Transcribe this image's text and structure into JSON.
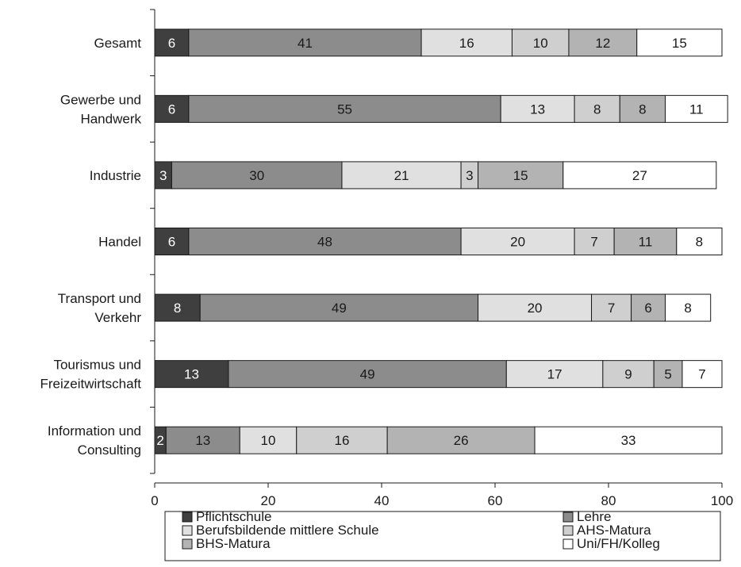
{
  "chart_data": {
    "type": "bar",
    "orientation": "horizontal",
    "stacked": true,
    "categories": [
      [
        "Gesamt"
      ],
      [
        "Gewerbe und",
        "Handwerk"
      ],
      [
        "Industrie"
      ],
      [
        "Handel"
      ],
      [
        "Transport und",
        "Verkehr"
      ],
      [
        "Tourismus und",
        "Freizeitwirtschaft"
      ],
      [
        "Information und",
        "Consulting"
      ]
    ],
    "series": [
      {
        "name": "Pflichtschule",
        "color": "#3f3f3f",
        "label_color": "#ffffff",
        "values": [
          6,
          6,
          3,
          6,
          8,
          13,
          2
        ]
      },
      {
        "name": "Lehre",
        "color": "#8c8c8c",
        "label_color": "#1a1a1a",
        "values": [
          41,
          55,
          30,
          48,
          49,
          49,
          13
        ]
      },
      {
        "name": "Berufsbildende mittlere Schule",
        "color": "#e0e0e0",
        "label_color": "#1a1a1a",
        "values": [
          16,
          13,
          21,
          20,
          20,
          17,
          10
        ]
      },
      {
        "name": "AHS-Matura",
        "color": "#cfcfcf",
        "label_color": "#1a1a1a",
        "values": [
          10,
          8,
          3,
          7,
          7,
          9,
          16
        ]
      },
      {
        "name": "BHS-Matura",
        "color": "#b3b3b3",
        "label_color": "#1a1a1a",
        "values": [
          12,
          8,
          15,
          11,
          6,
          5,
          26
        ]
      },
      {
        "name": "Uni/FH/Kolleg",
        "color": "#ffffff",
        "label_color": "#1a1a1a",
        "values": [
          15,
          11,
          27,
          8,
          8,
          7,
          33
        ]
      }
    ],
    "xlim": [
      0,
      100
    ],
    "xticks": [
      0,
      20,
      40,
      60,
      80,
      100
    ],
    "grid": false,
    "legend_position": "bottom",
    "xlabel": "",
    "ylabel": "",
    "title": ""
  }
}
